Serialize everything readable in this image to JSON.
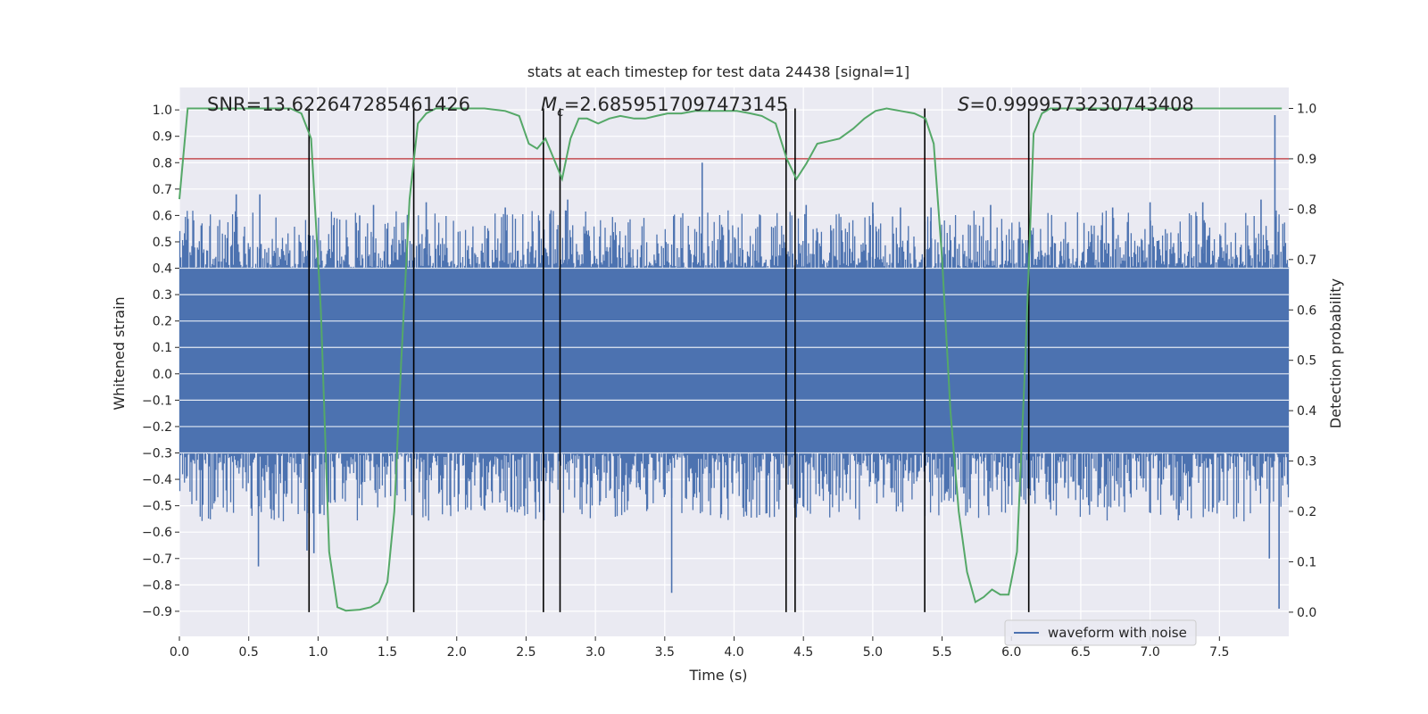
{
  "chart_data": {
    "type": "line",
    "title": "stats at each timestep for test data 24438 [signal=1]",
    "xlabel": "Time (s)",
    "ylabel": "Whitened strain",
    "y2label": "Detection probability",
    "xlim": [
      0.0,
      8.0
    ],
    "ylim": [
      -0.995,
      1.085
    ],
    "y2lim": [
      -0.048,
      1.0416
    ],
    "x_ticks": [
      "0.0",
      "0.5",
      "1.0",
      "1.5",
      "2.0",
      "2.5",
      "3.0",
      "3.5",
      "4.0",
      "4.5",
      "5.0",
      "5.5",
      "6.0",
      "6.5",
      "7.0",
      "7.5"
    ],
    "y_ticks": [
      "1.0",
      "0.9",
      "0.8",
      "0.7",
      "0.6",
      "0.5",
      "0.4",
      "0.3",
      "0.2",
      "0.1",
      "0.0",
      "−0.1",
      "−0.2",
      "−0.3",
      "−0.4",
      "−0.5",
      "−0.6",
      "−0.7",
      "−0.8",
      "−0.9"
    ],
    "y2_ticks": [
      "1.0",
      "0.9",
      "0.8",
      "0.7",
      "0.6",
      "0.5",
      "0.4",
      "0.3",
      "0.2",
      "0.1",
      "0.0"
    ],
    "grid": true,
    "legend_position": "lower-right",
    "annotations": {
      "snr": "SNR=13.622647285461426",
      "mc_symbol": "M",
      "mc_sub": "c",
      "mc_value": "=2.6859517097473145",
      "s_symbol": "S",
      "s_value": "=0.9999573230743408"
    },
    "threshold": {
      "value": 0.9,
      "axis": "right",
      "color": "#c44e52"
    },
    "event_markers": [
      0.935,
      1.69,
      2.625,
      2.745,
      4.375,
      4.44,
      5.375,
      6.125
    ],
    "series": [
      {
        "name": "waveform with noise",
        "color": "#4c72b0",
        "axis": "left",
        "kind": "noise-envelope",
        "core_range": [
          -0.3,
          0.4
        ],
        "peaks": [
          [
            0.1,
            0.52
          ],
          [
            0.22,
            0.56
          ],
          [
            0.41,
            0.68
          ],
          [
            0.58,
            0.68
          ],
          [
            0.57,
            -0.73
          ],
          [
            0.92,
            -0.67
          ],
          [
            0.97,
            -0.68
          ],
          [
            1.3,
            0.6
          ],
          [
            1.4,
            0.64
          ],
          [
            1.78,
            0.65
          ],
          [
            2.35,
            0.63
          ],
          [
            2.68,
            0.62
          ],
          [
            2.8,
            0.66
          ],
          [
            3.55,
            -0.83
          ],
          [
            3.77,
            0.8
          ],
          [
            4.52,
            0.64
          ],
          [
            5.0,
            0.65
          ],
          [
            5.2,
            0.63
          ],
          [
            5.42,
            0.63
          ],
          [
            5.85,
            0.64
          ],
          [
            6.73,
            0.63
          ],
          [
            7.0,
            0.65
          ],
          [
            7.38,
            0.65
          ],
          [
            7.8,
            0.66
          ],
          [
            7.86,
            -0.7
          ],
          [
            7.9,
            0.98
          ],
          [
            7.93,
            -0.89
          ]
        ]
      },
      {
        "name": "Detection probability",
        "color": "#55a868",
        "axis": "right",
        "x": [
          0.0,
          0.06,
          0.12,
          0.2,
          0.4,
          0.6,
          0.8,
          0.88,
          0.95,
          1.02,
          1.08,
          1.14,
          1.2,
          1.3,
          1.38,
          1.44,
          1.5,
          1.55,
          1.6,
          1.66,
          1.72,
          1.78,
          1.85,
          2.0,
          2.2,
          2.35,
          2.45,
          2.52,
          2.58,
          2.64,
          2.7,
          2.76,
          2.82,
          2.88,
          2.94,
          3.02,
          3.1,
          3.18,
          3.28,
          3.36,
          3.44,
          3.52,
          3.62,
          3.72,
          3.82,
          3.92,
          4.02,
          4.12,
          4.2,
          4.3,
          4.38,
          4.45,
          4.52,
          4.6,
          4.68,
          4.76,
          4.86,
          4.94,
          5.02,
          5.1,
          5.2,
          5.3,
          5.38,
          5.44,
          5.5,
          5.56,
          5.62,
          5.68,
          5.74,
          5.8,
          5.86,
          5.92,
          5.98,
          6.04,
          6.1,
          6.16,
          6.22,
          6.28,
          6.36,
          6.5,
          7.0,
          7.5,
          7.95
        ],
        "y": [
          0.82,
          1.0,
          1.0,
          1.0,
          1.0,
          1.0,
          1.0,
          0.99,
          0.94,
          0.6,
          0.12,
          0.01,
          0.003,
          0.005,
          0.01,
          0.02,
          0.06,
          0.2,
          0.5,
          0.82,
          0.97,
          0.99,
          1.0,
          1.0,
          1.0,
          0.995,
          0.985,
          0.93,
          0.92,
          0.94,
          0.9,
          0.86,
          0.94,
          0.98,
          0.98,
          0.97,
          0.98,
          0.985,
          0.98,
          0.98,
          0.985,
          0.99,
          0.99,
          0.995,
          0.995,
          0.995,
          0.995,
          0.99,
          0.985,
          0.97,
          0.9,
          0.86,
          0.89,
          0.93,
          0.935,
          0.94,
          0.96,
          0.98,
          0.995,
          1.0,
          0.995,
          0.99,
          0.98,
          0.93,
          0.7,
          0.4,
          0.2,
          0.08,
          0.02,
          0.03,
          0.045,
          0.035,
          0.035,
          0.12,
          0.5,
          0.95,
          0.99,
          1.0,
          1.0,
          1.0,
          1.0,
          1.0,
          1.0
        ]
      }
    ]
  }
}
